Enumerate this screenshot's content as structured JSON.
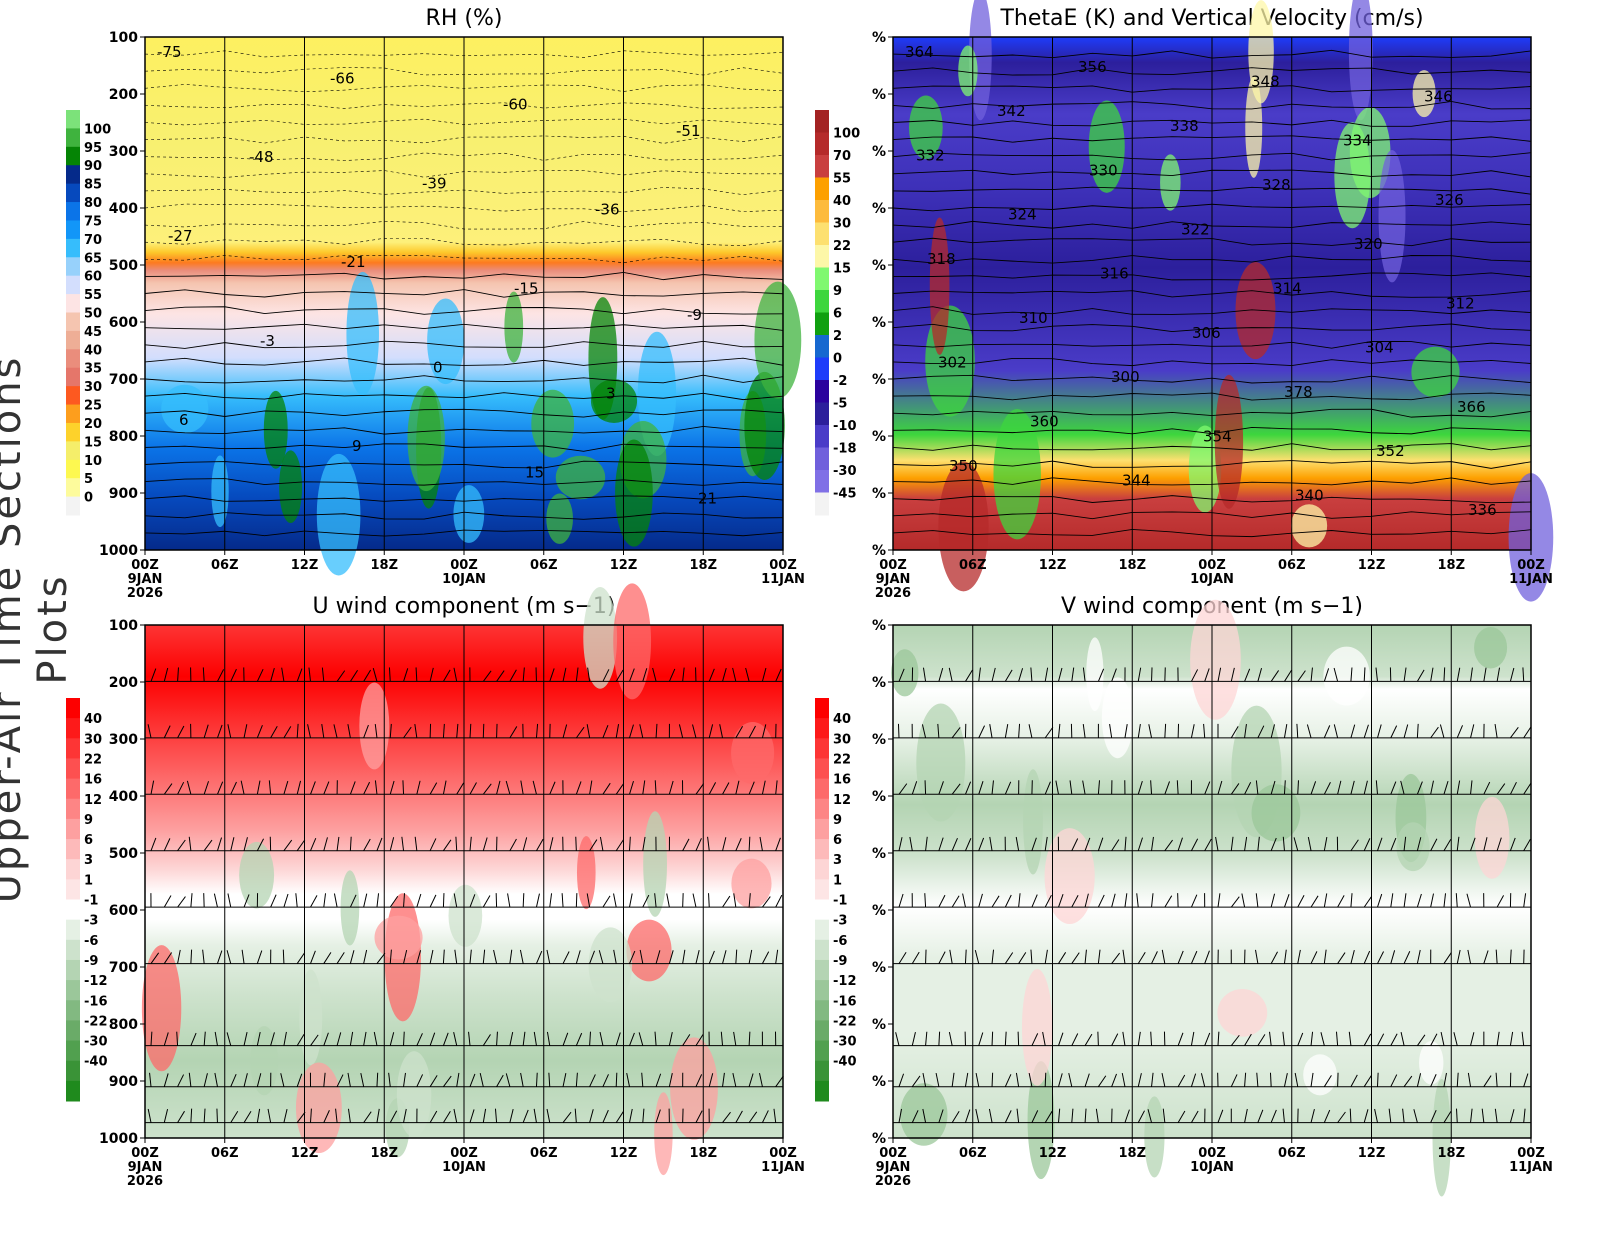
{
  "side_title": "Upper-Air Time Sections Plots",
  "chart_data": [
    {
      "type": "heatmap",
      "title": "RH (%)",
      "yticks": [
        "100",
        "200",
        "300",
        "400",
        "500",
        "600",
        "700",
        "800",
        "900",
        "1000"
      ],
      "ylim": [
        100,
        1000
      ],
      "xticks": [
        "00Z",
        "06Z",
        "12Z",
        "18Z",
        "00Z",
        "06Z",
        "12Z",
        "18Z",
        "00Z"
      ],
      "xdates": [
        "9JAN",
        "",
        "",
        "",
        "10JAN",
        "",
        "",
        "",
        "11JAN"
      ],
      "xyear": "2026",
      "grid": "vertical every 6h",
      "colorbar": {
        "labels": [
          "100",
          "95",
          "90",
          "85",
          "80",
          "75",
          "70",
          "65",
          "60",
          "55",
          "50",
          "45",
          "40",
          "35",
          "30",
          "25",
          "20",
          "15",
          "10",
          "5",
          "0"
        ],
        "colors": [
          "#7ce27a",
          "#3fb33e",
          "#058405",
          "#052a8a",
          "#0649bd",
          "#0b74e8",
          "#1296f8",
          "#36bdfc",
          "#97d1fb",
          "#d3defd",
          "#fde4e4",
          "#f5c5b0",
          "#eeae96",
          "#ea8d7c",
          "#e5766a",
          "#fd5920",
          "#fd9e1d",
          "#fdd22b",
          "#f5ee6a",
          "#fdf850",
          "#fdfb9c",
          "#f3f3f3"
        ]
      },
      "contour_labels": [
        "-75",
        "-66",
        "-60",
        "-51",
        "-48",
        "-39",
        "-36",
        "-27",
        "-21",
        "-15",
        "-9",
        "-3",
        "0",
        "3",
        "6",
        "9",
        "15",
        "21"
      ]
    },
    {
      "type": "heatmap",
      "title": "ThetaE (K) and Vertical Velocity (cm/s)",
      "yticks": [
        "%",
        "%",
        "%",
        "%",
        "%",
        "%",
        "%",
        "%",
        "%",
        "%"
      ],
      "xticks": [
        "00Z",
        "06Z",
        "12Z",
        "18Z",
        "00Z",
        "06Z",
        "12Z",
        "18Z",
        "00Z"
      ],
      "xdates": [
        "9JAN",
        "",
        "",
        "",
        "10JAN",
        "",
        "",
        "",
        "11JAN"
      ],
      "xyear": "2026",
      "colorbar": {
        "labels": [
          "100",
          "70",
          "55",
          "40",
          "30",
          "22",
          "15",
          "9",
          "6",
          "2",
          "0",
          "-2",
          "-5",
          "-10",
          "-18",
          "-30",
          "-45"
        ],
        "colors": [
          "#a32222",
          "#b52a2a",
          "#c93f3f",
          "#fda000",
          "#fdbb3c",
          "#fde070",
          "#fdf7a8",
          "#80f870",
          "#3dd63d",
          "#10a010",
          "#1668d0",
          "#1e3cfa",
          "#2b029e",
          "#2c1f9c",
          "#4a3cc8",
          "#7060dc",
          "#8070e6",
          "#f3f3f3"
        ]
      },
      "contour_labels": [
        "364",
        "356",
        "348",
        "346",
        "342",
        "338",
        "334",
        "332",
        "330",
        "328",
        "326",
        "324",
        "322",
        "320",
        "318",
        "316",
        "314",
        "312",
        "310",
        "306",
        "304",
        "302",
        "300",
        "378",
        "366",
        "360",
        "354",
        "352",
        "350",
        "344",
        "340",
        "336"
      ]
    },
    {
      "type": "heatmap",
      "title": "U wind component (m s−1)",
      "yticks": [
        "100",
        "200",
        "300",
        "400",
        "500",
        "600",
        "700",
        "800",
        "900",
        "1000"
      ],
      "ylim": [
        100,
        1000
      ],
      "xticks": [
        "00Z",
        "06Z",
        "12Z",
        "18Z",
        "00Z",
        "06Z",
        "12Z",
        "18Z",
        "00Z"
      ],
      "xdates": [
        "9JAN",
        "",
        "",
        "",
        "10JAN",
        "",
        "",
        "",
        "11JAN"
      ],
      "xyear": "2026",
      "colorbar": {
        "labels": [
          "40",
          "30",
          "22",
          "16",
          "12",
          "9",
          "6",
          "3",
          "1",
          "-1",
          "-3",
          "-6",
          "-9",
          "-12",
          "-16",
          "-22",
          "-30",
          "-40"
        ],
        "colors": [
          "#fd0000",
          "#fd1a1a",
          "#fd3535",
          "#fd5050",
          "#fd6a6a",
          "#fd8585",
          "#fda0a0",
          "#fdbaba",
          "#fdd5d5",
          "#fde5e5",
          "#ffffff",
          "#e5f0e4",
          "#cde2cc",
          "#b4d4b3",
          "#9bc79a",
          "#82b981",
          "#6aab68",
          "#51a04f",
          "#3a9337",
          "#1f8a1d"
        ]
      },
      "barb_levels": [
        "200",
        "300",
        "400",
        "500",
        "600",
        "700",
        "850",
        "925",
        "1000"
      ]
    },
    {
      "type": "heatmap",
      "title": "V wind component (m s−1)",
      "yticks": [
        "%",
        "%",
        "%",
        "%",
        "%",
        "%",
        "%",
        "%",
        "%",
        "%"
      ],
      "xticks": [
        "00Z",
        "06Z",
        "12Z",
        "18Z",
        "00Z",
        "06Z",
        "12Z",
        "18Z",
        "00Z"
      ],
      "xdates": [
        "9JAN",
        "",
        "",
        "",
        "10JAN",
        "",
        "",
        "",
        "11JAN"
      ],
      "xyear": "2026",
      "colorbar": {
        "labels": [
          "40",
          "30",
          "22",
          "16",
          "12",
          "9",
          "6",
          "3",
          "1",
          "-1",
          "-3",
          "-6",
          "-9",
          "-12",
          "-16",
          "-22",
          "-30",
          "-40"
        ],
        "colors": [
          "#fd0000",
          "#fd1a1a",
          "#fd3535",
          "#fd5050",
          "#fd6a6a",
          "#fd8585",
          "#fda0a0",
          "#fdbaba",
          "#fdd5d5",
          "#fde5e5",
          "#ffffff",
          "#e5f0e4",
          "#cde2cc",
          "#b4d4b3",
          "#9bc79a",
          "#82b981",
          "#6aab68",
          "#51a04f",
          "#3a9337",
          "#1f8a1d"
        ]
      }
    }
  ]
}
